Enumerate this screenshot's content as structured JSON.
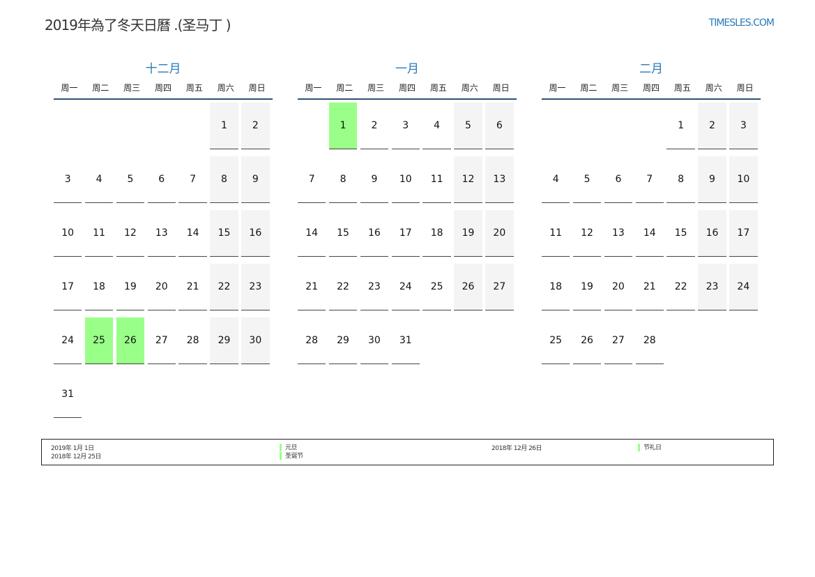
{
  "title": "2019年為了冬天日曆 .(圣马丁 )",
  "site": "TIMESLES.COM",
  "colors": {
    "accent": "#2a7ab8",
    "holiday": "#99ff88",
    "weekend": "#f4f4f4"
  },
  "weekdays": [
    "周一",
    "周二",
    "周三",
    "周四",
    "周五",
    "周六",
    "周日"
  ],
  "months": [
    {
      "name": "十二月",
      "weeks": [
        [
          null,
          null,
          null,
          null,
          null,
          1,
          2
        ],
        [
          3,
          4,
          5,
          6,
          7,
          8,
          9
        ],
        [
          10,
          11,
          12,
          13,
          14,
          15,
          16
        ],
        [
          17,
          18,
          19,
          20,
          21,
          22,
          23
        ],
        [
          24,
          25,
          26,
          27,
          28,
          29,
          30
        ],
        [
          31,
          null,
          null,
          null,
          null,
          null,
          null
        ]
      ],
      "holidays": [
        25,
        26
      ]
    },
    {
      "name": "一月",
      "weeks": [
        [
          null,
          1,
          2,
          3,
          4,
          5,
          6
        ],
        [
          7,
          8,
          9,
          10,
          11,
          12,
          13
        ],
        [
          14,
          15,
          16,
          17,
          18,
          19,
          20
        ],
        [
          21,
          22,
          23,
          24,
          25,
          26,
          27
        ],
        [
          28,
          29,
          30,
          31,
          null,
          null,
          null
        ]
      ],
      "holidays": [
        1
      ]
    },
    {
      "name": "二月",
      "weeks": [
        [
          null,
          null,
          null,
          null,
          1,
          2,
          3
        ],
        [
          4,
          5,
          6,
          7,
          8,
          9,
          10
        ],
        [
          11,
          12,
          13,
          14,
          15,
          16,
          17
        ],
        [
          18,
          19,
          20,
          21,
          22,
          23,
          24
        ],
        [
          25,
          26,
          27,
          28,
          null,
          null,
          null
        ]
      ],
      "holidays": []
    }
  ],
  "legend": [
    {
      "date": "2019年 1月 1日",
      "name": "元旦"
    },
    {
      "date": "2018年 12月 25日",
      "name": "圣诞节"
    },
    {
      "date": "2018年 12月 26日",
      "name": "节礼日"
    }
  ]
}
